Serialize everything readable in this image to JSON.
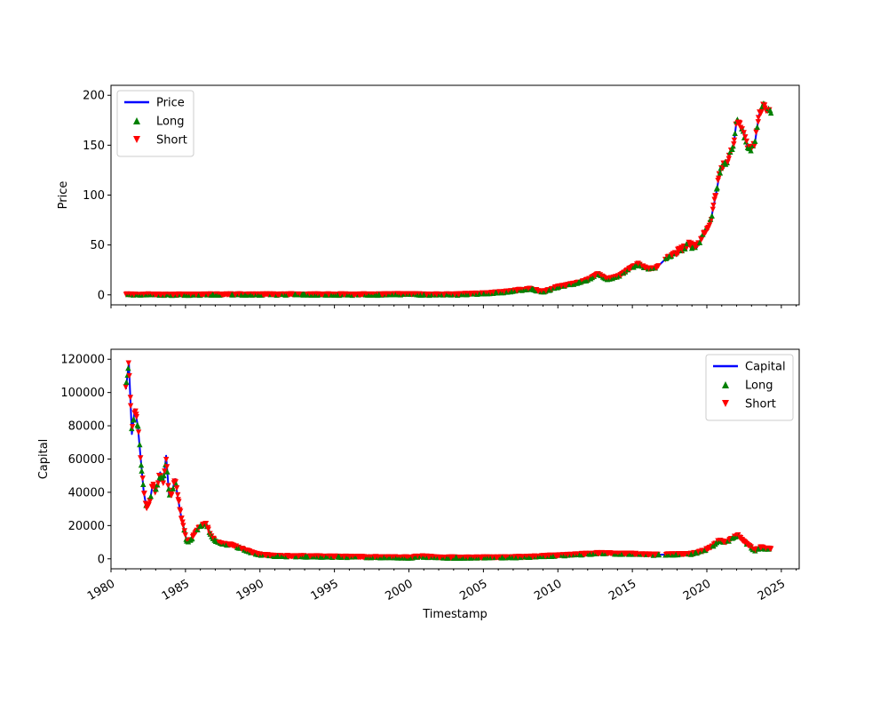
{
  "chart_data": [
    {
      "type": "line",
      "title": "",
      "xlabel": "",
      "ylabel": "Price",
      "xlim": [
        1980.0,
        2026.2
      ],
      "ylim": [
        -10,
        210
      ],
      "yticks": [
        0,
        50,
        100,
        150,
        200
      ],
      "legend_location": "upper-left",
      "series": [
        {
          "name": "Price",
          "kind": "line",
          "color": "#0000ff",
          "x": [
            1981.0,
            1983,
            1985,
            1987,
            1990,
            1992,
            1995,
            1998,
            2000,
            2001,
            2003,
            2005,
            2006.5,
            2007.5,
            2008.2,
            2009,
            2010,
            2011,
            2012,
            2012.7,
            2013.3,
            2014,
            2014.8,
            2015.4,
            2016,
            2016.6,
            2017.3,
            2018,
            2018.8,
            2019.3,
            2019.8,
            2020.2,
            2020.6,
            2020.9,
            2021.4,
            2021.8,
            2022.0,
            2022.4,
            2022.8,
            2023.2,
            2023.5,
            2023.8,
            2024.0,
            2024.3
          ],
          "y": [
            0.4,
            0.2,
            0.2,
            0.4,
            0.3,
            0.5,
            0.3,
            0.3,
            0.9,
            0.3,
            0.3,
            1.5,
            3,
            5,
            6,
            3,
            8,
            11,
            15,
            21,
            16,
            18,
            26,
            31,
            26,
            27,
            37,
            43,
            50,
            47,
            62,
            70,
            100,
            125,
            135,
            150,
            175,
            165,
            145,
            150,
            180,
            190,
            186,
            185
          ]
        },
        {
          "name": "Long",
          "kind": "marker",
          "marker": "triangle-up",
          "color": "#008000"
        },
        {
          "name": "Short",
          "kind": "marker",
          "marker": "triangle-down",
          "color": "#ff0000"
        }
      ]
    },
    {
      "type": "line",
      "title": "",
      "xlabel": "Timestamp",
      "ylabel": "Capital",
      "xlim": [
        1980.0,
        2026.2
      ],
      "ylim": [
        -6000,
        126000
      ],
      "yticks": [
        0,
        20000,
        40000,
        60000,
        80000,
        100000,
        120000
      ],
      "xticks": [
        1980,
        1985,
        1990,
        1995,
        2000,
        2005,
        2010,
        2015,
        2020,
        2025
      ],
      "legend_location": "upper-right",
      "series": [
        {
          "name": "Capital",
          "kind": "line",
          "color": "#0000ff",
          "x": [
            1981.0,
            1981.2,
            1981.4,
            1981.6,
            1981.8,
            1982.0,
            1982.2,
            1982.4,
            1982.6,
            1982.8,
            1983.0,
            1983.3,
            1983.5,
            1983.7,
            1983.9,
            1984.1,
            1984.3,
            1984.5,
            1984.7,
            1984.9,
            1985.1,
            1985.4,
            1985.7,
            1986.0,
            1986.4,
            1986.7,
            1987.0,
            1987.5,
            1988.0,
            1988.5,
            1989.0,
            1989.5,
            1990.0,
            1991,
            1992,
            1994,
            1996,
            1998,
            2000,
            2000.8,
            2002,
            2004,
            2006,
            2008,
            2010,
            2012,
            2013,
            2014,
            2015,
            2016,
            2017,
            2018,
            2019,
            2019.8,
            2020.3,
            2020.8,
            2021.3,
            2021.8,
            2022.1,
            2022.4,
            2022.8,
            2023.2,
            2023.6,
            2024.0,
            2024.3
          ],
          "y": [
            102000,
            118000,
            75000,
            90000,
            80000,
            60000,
            40000,
            30000,
            34000,
            45000,
            40000,
            52000,
            45000,
            62000,
            38000,
            40000,
            48000,
            36000,
            26000,
            18000,
            10000,
            12000,
            16000,
            20000,
            21000,
            14000,
            11000,
            9000,
            8500,
            7000,
            5500,
            3500,
            2500,
            1800,
            1600,
            1400,
            1200,
            1000,
            800,
            1500,
            800,
            800,
            800,
            1200,
            2000,
            3000,
            3500,
            3000,
            3000,
            2500,
            2500,
            2800,
            3000,
            5000,
            7000,
            11000,
            10000,
            13000,
            14000,
            11000,
            8000,
            5000,
            7000,
            6000,
            6000
          ]
        },
        {
          "name": "Long",
          "kind": "marker",
          "marker": "triangle-up",
          "color": "#008000"
        },
        {
          "name": "Short",
          "kind": "marker",
          "marker": "triangle-down",
          "color": "#ff0000"
        }
      ]
    }
  ]
}
